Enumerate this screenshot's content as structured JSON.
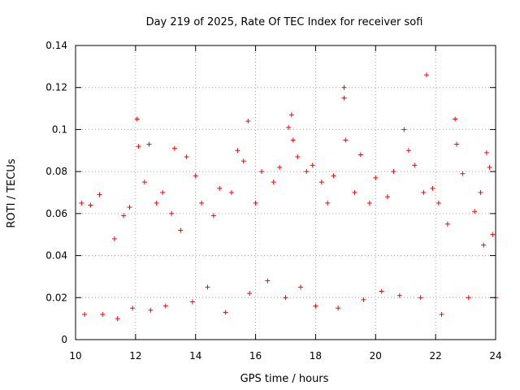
{
  "chart_data": {
    "type": "scatter",
    "title": "Day 219 of 2025, Rate Of TEC Index for receiver sofi",
    "xlabel": "GPS time / hours",
    "ylabel": "ROTI / TECUs",
    "xlim": [
      10,
      24
    ],
    "ylim": [
      0,
      0.14
    ],
    "x_ticks": [
      "10",
      "12",
      "14",
      "16",
      "18",
      "20",
      "22",
      "24"
    ],
    "y_ticks": [
      "0",
      "0.02",
      "0.04",
      "0.06",
      "0.08",
      "0.1",
      "0.12",
      "0.14"
    ],
    "grid": true,
    "marker": "+",
    "color": "#ff0000",
    "series": [
      {
        "points": [
          [
            10.2,
            0.065
          ],
          [
            10.3,
            0.012
          ],
          [
            10.5,
            0.064
          ],
          [
            10.8,
            0.069
          ],
          [
            10.9,
            0.012
          ],
          [
            11.3,
            0.048
          ],
          [
            11.4,
            0.01
          ],
          [
            11.6,
            0.059
          ],
          [
            11.8,
            0.063
          ],
          [
            11.9,
            0.015
          ],
          [
            12.05,
            0.105
          ],
          [
            12.1,
            0.092
          ],
          [
            12.3,
            0.075
          ],
          [
            12.45,
            0.093
          ],
          [
            12.5,
            0.014
          ],
          [
            12.7,
            0.065
          ],
          [
            12.9,
            0.07
          ],
          [
            13.0,
            0.016
          ],
          [
            13.2,
            0.06
          ],
          [
            13.3,
            0.091
          ],
          [
            13.5,
            0.052
          ],
          [
            13.7,
            0.087
          ],
          [
            13.9,
            0.018
          ],
          [
            14.0,
            0.078
          ],
          [
            14.2,
            0.065
          ],
          [
            14.4,
            0.025
          ],
          [
            14.6,
            0.059
          ],
          [
            14.8,
            0.072
          ],
          [
            15.0,
            0.013
          ],
          [
            15.2,
            0.07
          ],
          [
            15.4,
            0.09
          ],
          [
            15.6,
            0.085
          ],
          [
            15.75,
            0.104
          ],
          [
            15.8,
            0.022
          ],
          [
            16.0,
            0.065
          ],
          [
            16.2,
            0.08
          ],
          [
            16.4,
            0.028
          ],
          [
            16.6,
            0.075
          ],
          [
            16.8,
            0.082
          ],
          [
            17.0,
            0.02
          ],
          [
            17.1,
            0.101
          ],
          [
            17.2,
            0.107
          ],
          [
            17.25,
            0.095
          ],
          [
            17.4,
            0.087
          ],
          [
            17.5,
            0.025
          ],
          [
            17.7,
            0.08
          ],
          [
            17.9,
            0.083
          ],
          [
            18.0,
            0.016
          ],
          [
            18.2,
            0.075
          ],
          [
            18.4,
            0.065
          ],
          [
            18.6,
            0.078
          ],
          [
            18.75,
            0.015
          ],
          [
            18.95,
            0.12
          ],
          [
            18.95,
            0.115
          ],
          [
            19.0,
            0.095
          ],
          [
            19.3,
            0.07
          ],
          [
            19.5,
            0.088
          ],
          [
            19.6,
            0.019
          ],
          [
            19.8,
            0.065
          ],
          [
            20.0,
            0.077
          ],
          [
            20.2,
            0.023
          ],
          [
            20.4,
            0.068
          ],
          [
            20.6,
            0.08
          ],
          [
            20.8,
            0.021
          ],
          [
            20.95,
            0.1
          ],
          [
            21.1,
            0.09
          ],
          [
            21.3,
            0.083
          ],
          [
            21.5,
            0.02
          ],
          [
            21.6,
            0.07
          ],
          [
            21.7,
            0.126
          ],
          [
            21.9,
            0.072
          ],
          [
            22.1,
            0.065
          ],
          [
            22.2,
            0.012
          ],
          [
            22.4,
            0.055
          ],
          [
            22.65,
            0.105
          ],
          [
            22.7,
            0.093
          ],
          [
            22.9,
            0.079
          ],
          [
            23.1,
            0.02
          ],
          [
            23.3,
            0.061
          ],
          [
            23.5,
            0.07
          ],
          [
            23.6,
            0.045
          ],
          [
            23.7,
            0.089
          ],
          [
            23.8,
            0.082
          ],
          [
            23.9,
            0.05
          ],
          [
            24.0,
            0.02
          ]
        ]
      }
    ]
  }
}
